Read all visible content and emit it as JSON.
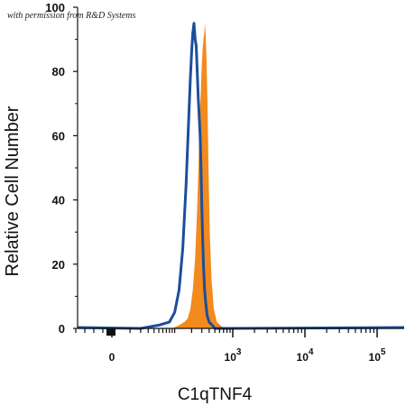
{
  "watermark": "with permission from R&D Systems",
  "chart_data": {
    "type": "area",
    "xlabel": "C1qTNF4",
    "ylabel": "Relative Cell Number",
    "ylim": [
      0,
      100
    ],
    "yticks": [
      0,
      20,
      40,
      60,
      80,
      100
    ],
    "x_scale": "biexponential",
    "xticks": [
      {
        "label": "0",
        "value": 0
      },
      {
        "label": "10",
        "sup": "3",
        "value": 1000
      },
      {
        "label": "10",
        "sup": "4",
        "value": 10000
      },
      {
        "label": "10",
        "sup": "5",
        "value": 100000
      }
    ],
    "colors": {
      "filled": "#f28a1d",
      "outline": "#1c4e9c"
    },
    "series": [
      {
        "style": "filled",
        "x": [
          60,
          90,
          120,
          150,
          170,
          190,
          210,
          230,
          250,
          265,
          280,
          290,
          300,
          310,
          320,
          330,
          340,
          350,
          360,
          375,
          390,
          410,
          440,
          480,
          540,
          620,
          700,
          800
        ],
        "values": [
          0,
          0,
          1,
          2,
          3,
          6,
          12,
          22,
          38,
          52,
          68,
          76,
          82,
          87,
          90,
          92,
          95,
          91,
          85,
          70,
          50,
          30,
          15,
          6,
          2,
          1,
          0,
          0
        ]
      },
      {
        "style": "outline",
        "x": [
          20,
          50,
          80,
          100,
          120,
          140,
          160,
          175,
          190,
          200,
          210,
          220,
          230,
          240,
          250,
          260,
          270,
          280,
          290,
          300,
          310,
          320,
          335,
          350,
          370,
          400,
          450,
          500,
          600,
          700
        ],
        "values": [
          0,
          1,
          2,
          5,
          12,
          25,
          45,
          62,
          78,
          86,
          92,
          95,
          90,
          88,
          80,
          72,
          66,
          60,
          50,
          38,
          28,
          20,
          12,
          8,
          4,
          2,
          1,
          0,
          0,
          0
        ]
      }
    ]
  }
}
